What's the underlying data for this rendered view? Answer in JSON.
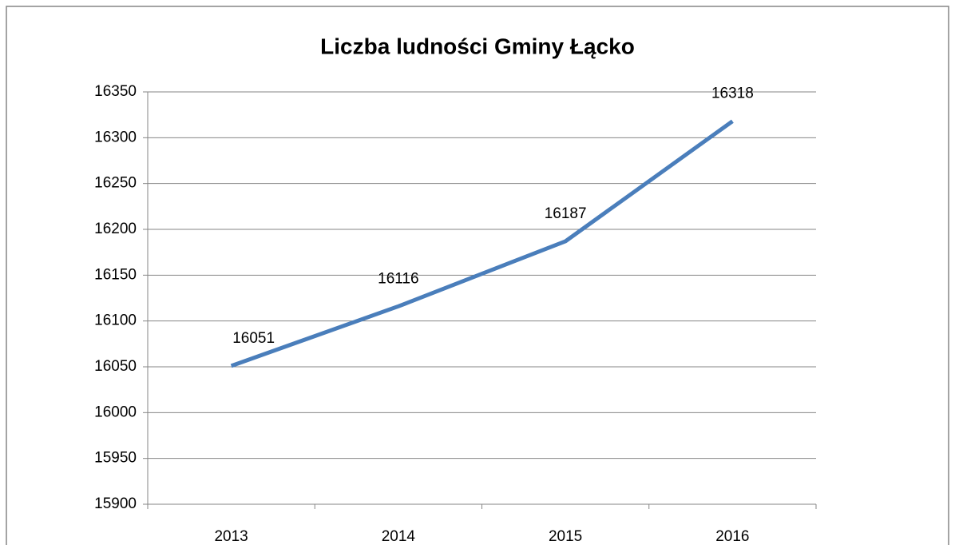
{
  "chart_data": {
    "type": "line",
    "title": "Liczba ludności Gminy Łącko",
    "categories": [
      "2013",
      "2014",
      "2015",
      "2016"
    ],
    "series": [
      {
        "name": "Liczba ludności",
        "color": "#4a7ebb",
        "values": [
          16051,
          16116,
          16187,
          16318
        ]
      }
    ],
    "ylim": [
      15900,
      16350
    ],
    "yticks": [
      15900,
      15950,
      16000,
      16050,
      16100,
      16150,
      16200,
      16250,
      16300,
      16350
    ],
    "grid": true
  }
}
